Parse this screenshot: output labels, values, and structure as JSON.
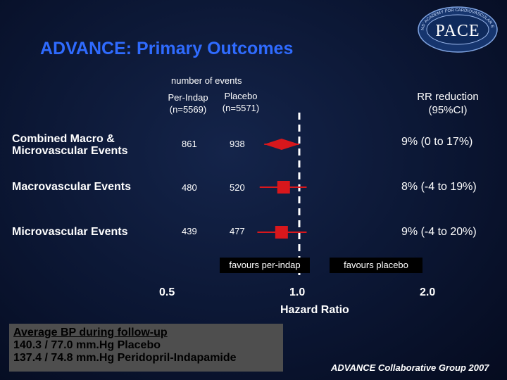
{
  "logo": {
    "text": "PACE",
    "ring_text": "PHYSICIANS' ACADEMY FOR CARDIOVASCULAR EDUCATION"
  },
  "title": "ADVANCE: Primary Outcomes",
  "header": {
    "events_label": "number of events",
    "col1_line1": "Per-Indap",
    "col1_line2": "(n=5569)",
    "col2_line1": "Placebo",
    "col2_line2": "(n=5571)",
    "rr_line1": "RR reduction",
    "rr_line2": "(95%CI)"
  },
  "rows": [
    {
      "label_line1": "Combined Macro &",
      "label_line2": "Microvascular Events",
      "per_indap": "861",
      "placebo": "938",
      "rr": "9%  (0 to 17%)"
    },
    {
      "label_line1": "Macrovascular Events",
      "label_line2": "",
      "per_indap": "480",
      "placebo": "520",
      "rr": "8%  (-4 to 19%)"
    },
    {
      "label_line1": "Microvascular Events",
      "label_line2": "",
      "per_indap": "439",
      "placebo": "477",
      "rr": "9%  (-4 to 20%)"
    }
  ],
  "favours_left": "favours per-indap",
  "favours_right": "favours placebo",
  "bp_box": {
    "line1": "Average BP during follow-up",
    "line2": "140.3 / 77.0 mm.Hg Placebo",
    "line3": "137.4 / 74.8 mm.Hg Peridopril-Indapamide"
  },
  "credit": "ADVANCE Collaborative Group 2007",
  "colors": {
    "title": "#2f6bff",
    "marker": "#d8171c",
    "refline": "#ffffff"
  },
  "chart_data": {
    "type": "forest",
    "xlabel": "Hazard Ratio",
    "x_scale": "log",
    "xlim": [
      0.5,
      2.0
    ],
    "ticks": [
      "0.5",
      "1.0",
      "2.0"
    ],
    "tick_values": [
      0.5,
      1.0,
      2.0
    ],
    "reference_line": 1.0,
    "series": [
      {
        "name": "Combined Macro & Microvascular Events",
        "hr": 0.91,
        "ci_low": 0.83,
        "ci_high": 1.0,
        "shape": "diamond"
      },
      {
        "name": "Macrovascular Events",
        "hr": 0.92,
        "ci_low": 0.81,
        "ci_high": 1.04,
        "shape": "square"
      },
      {
        "name": "Microvascular Events",
        "hr": 0.91,
        "ci_low": 0.8,
        "ci_high": 1.04,
        "shape": "square"
      }
    ]
  }
}
